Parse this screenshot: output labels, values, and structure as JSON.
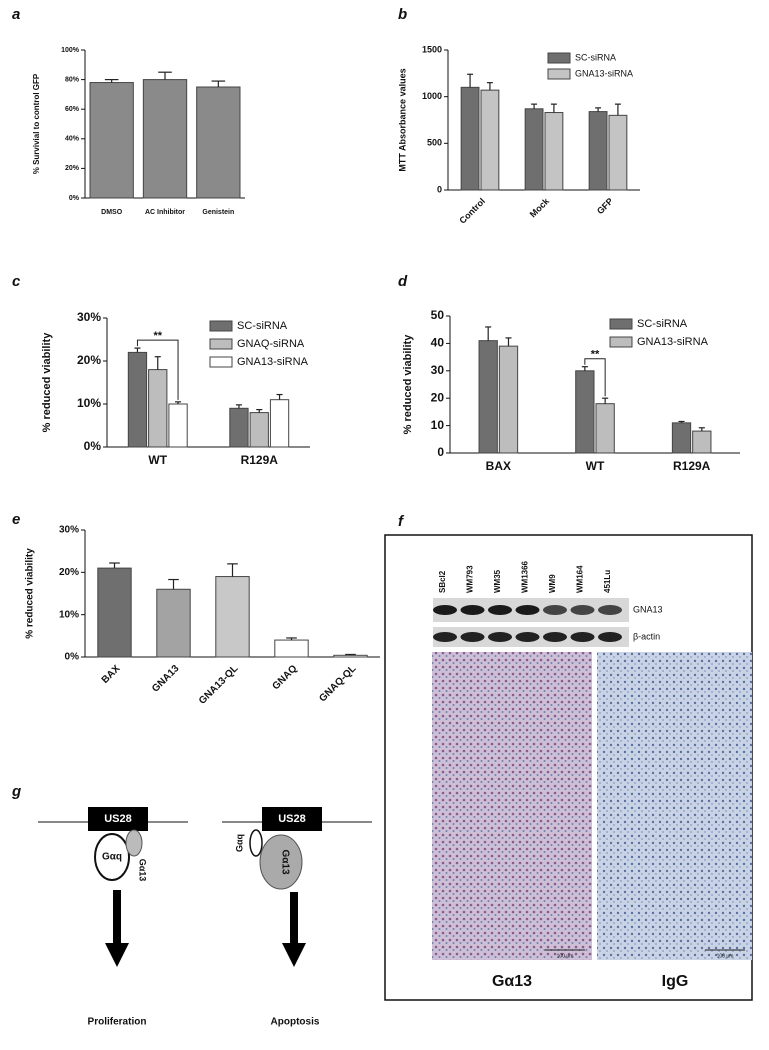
{
  "chart_data": [
    {
      "type": "bar",
      "panel": "a",
      "ylabel": "% Survivial to control GFP",
      "categories": [
        "DMSO",
        "AC Inhibitor",
        "Genistein"
      ],
      "values": [
        78,
        80,
        75
      ],
      "errors": [
        2,
        5,
        4
      ],
      "color": "#8a8a8a",
      "ylim": [
        0,
        100
      ],
      "yticks": [
        {
          "value": 0,
          "label": "0%"
        },
        {
          "value": 20,
          "label": "20%"
        },
        {
          "value": 40,
          "label": "40%"
        },
        {
          "value": 60,
          "label": "60%"
        },
        {
          "value": 80,
          "label": "80%"
        },
        {
          "value": 100,
          "label": "100%"
        }
      ]
    },
    {
      "type": "bar",
      "panel": "b",
      "ylabel": "MTT Absorbance values",
      "categories": [
        "Control",
        "Mock",
        "GFP"
      ],
      "series": [
        {
          "name": "SC-siRNA",
          "color": "#6f6f6f",
          "values": [
            1100,
            870,
            840
          ],
          "errors": [
            140,
            50,
            40
          ]
        },
        {
          "name": "GNA13-siRNA",
          "color": "#c4c4c4",
          "values": [
            1070,
            830,
            800
          ],
          "errors": [
            80,
            90,
            120
          ]
        }
      ],
      "legend": "upper right",
      "ylim": [
        0,
        1500
      ],
      "yticks": [
        0,
        500,
        1000,
        1500
      ]
    },
    {
      "type": "bar",
      "panel": "c",
      "ylabel": "% reduced viability",
      "categories": [
        "WT",
        "R129A"
      ],
      "series": [
        {
          "name": "SC-siRNA",
          "color": "#6f6f6f",
          "values": [
            22,
            9
          ],
          "errors": [
            1,
            0.8
          ]
        },
        {
          "name": "GNAQ-siRNA",
          "color": "#bdbdbd",
          "values": [
            18,
            8
          ],
          "errors": [
            3,
            0.7
          ]
        },
        {
          "name": "GNA13-siRNA",
          "color": "#ffffff",
          "values": [
            10,
            11
          ],
          "errors": [
            0.5,
            1.2
          ]
        }
      ],
      "annotation": "**",
      "legend": "upper right",
      "ylim": [
        0,
        30
      ],
      "yticks": [
        {
          "value": 0,
          "label": "0%"
        },
        {
          "value": 10,
          "label": "10%"
        },
        {
          "value": 20,
          "label": "20%"
        },
        {
          "value": 30,
          "label": "30%"
        }
      ]
    },
    {
      "type": "bar",
      "panel": "d",
      "ylabel": "% reduced viability",
      "categories": [
        "BAX",
        "WT",
        "R129A"
      ],
      "series": [
        {
          "name": "SC-siRNA",
          "color": "#6f6f6f",
          "values": [
            41,
            30,
            11
          ],
          "errors": [
            5,
            1.5,
            0.5
          ]
        },
        {
          "name": "GNA13-siRNA",
          "color": "#bdbdbd",
          "values": [
            39,
            18,
            8
          ],
          "errors": [
            3,
            2,
            1.2
          ]
        }
      ],
      "annotation": "**",
      "legend": "upper right",
      "ylim": [
        0,
        50
      ],
      "yticks": [
        0,
        10,
        20,
        30,
        40,
        50
      ]
    },
    {
      "type": "bar",
      "panel": "e",
      "ylabel": "% reduced viability",
      "categories": [
        "BAX",
        "GNA13",
        "GNA13-QL",
        "GNAQ",
        "GNAQ-QL"
      ],
      "values": [
        21,
        16,
        19,
        4,
        0.4
      ],
      "errors": [
        1.2,
        2.3,
        3,
        0.5,
        0.2
      ],
      "colors": [
        "#6f6f6f",
        "#a3a3a3",
        "#c8c8c8",
        "#ffffff",
        "#ffffff"
      ],
      "ylim": [
        0,
        30
      ],
      "yticks": [
        {
          "value": 0,
          "label": "0%"
        },
        {
          "value": 10,
          "label": "10%"
        },
        {
          "value": 20,
          "label": "20%"
        },
        {
          "value": 30,
          "label": "30%"
        }
      ]
    }
  ],
  "blot": {
    "panel": "f",
    "lanes": [
      "SBcl2",
      "WM793",
      "WM35",
      "WM1366",
      "WM9",
      "WM164",
      "451Lu"
    ],
    "bands": [
      "GNA13",
      "β-actin"
    ],
    "images": [
      "Gα13",
      "IgG"
    ],
    "scale": "100 μm"
  },
  "diagram": {
    "panel": "g",
    "states": [
      {
        "receptor": "US28",
        "gq": "Gαq",
        "g13": "Gα13",
        "outcome": "Proliferation"
      },
      {
        "receptor": "US28",
        "gq": "Gαq",
        "g13": "Gα13",
        "outcome": "Apoptosis"
      }
    ]
  }
}
